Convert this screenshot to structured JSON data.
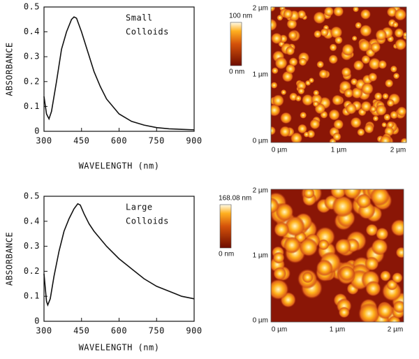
{
  "chart_data": [
    {
      "type": "line",
      "annotations": [
        "Small",
        "Colloids"
      ],
      "x_label": "WAVELENGTH (nm)",
      "y_label": "ABSORBANCE",
      "x": [
        300,
        310,
        320,
        330,
        350,
        370,
        390,
        410,
        420,
        430,
        450,
        475,
        500,
        525,
        550,
        600,
        650,
        700,
        750,
        800,
        850,
        900
      ],
      "values": [
        0.14,
        0.07,
        0.05,
        0.08,
        0.2,
        0.33,
        0.4,
        0.45,
        0.46,
        0.455,
        0.4,
        0.32,
        0.24,
        0.18,
        0.13,
        0.07,
        0.04,
        0.025,
        0.015,
        0.01,
        0.008,
        0.006
      ],
      "color": "#111111",
      "xlim": [
        300,
        900
      ],
      "xticks": [
        300,
        450,
        600,
        750,
        900
      ],
      "ylim": [
        0,
        0.5
      ],
      "yticks": [
        0,
        0.1,
        0.2,
        0.3,
        0.4,
        0.5
      ]
    },
    {
      "type": "line",
      "annotations": [
        "Large",
        "Colloids"
      ],
      "x_label": "WAVELENGTH (nm)",
      "y_label": "ABSORBANCE",
      "x": [
        300,
        310,
        315,
        325,
        340,
        360,
        380,
        400,
        420,
        435,
        445,
        460,
        480,
        500,
        550,
        600,
        650,
        700,
        750,
        800,
        850,
        900
      ],
      "values": [
        0.19,
        0.08,
        0.065,
        0.09,
        0.18,
        0.28,
        0.36,
        0.41,
        0.45,
        0.47,
        0.465,
        0.43,
        0.39,
        0.36,
        0.3,
        0.25,
        0.21,
        0.17,
        0.14,
        0.12,
        0.1,
        0.09
      ],
      "color": "#111111",
      "xlim": [
        300,
        900
      ],
      "xticks": [
        300,
        450,
        600,
        750,
        900
      ],
      "ylim": [
        0,
        0.5
      ],
      "yticks": [
        0,
        0.1,
        0.2,
        0.3,
        0.4,
        0.5
      ]
    }
  ],
  "images": [
    {
      "scale_max": "100 nm",
      "scale_min": "0 nm",
      "yticks": [
        "2 µm",
        "1 µm",
        "0 µm"
      ],
      "xticks": [
        "0 µm",
        "1 µm",
        "2 µm"
      ]
    },
    {
      "scale_max": "168.08 nm",
      "scale_min": "0 nm",
      "yticks": [
        "2 µm",
        "1 µm",
        "0 µm"
      ],
      "xticks": [
        "0 µm",
        "1 µm",
        "2 µm"
      ]
    }
  ]
}
